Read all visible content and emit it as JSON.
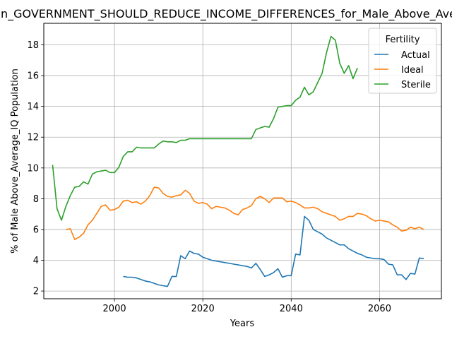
{
  "chart_data": {
    "type": "line",
    "title": "S_in_GOVERNMENT_SHOULD_REDUCE_INCOME_DIFFERENCES_for_Male_Above_Average_IQ",
    "xlabel": "Years",
    "ylabel": "% of Male Above_Average_IQ Population",
    "xlim": [
      1984,
      2074
    ],
    "ylim": [
      1.5,
      19.4
    ],
    "xticks": [
      2000,
      2020,
      2040,
      2060
    ],
    "yticks": [
      2,
      4,
      6,
      8,
      10,
      12,
      14,
      16,
      18
    ],
    "grid": true,
    "legend": {
      "title": "Fertility",
      "placement": "top-right"
    },
    "series": [
      {
        "name": "Actual",
        "color": "#1f77b4",
        "x": [
          2002,
          2003,
          2004,
          2005,
          2006,
          2007,
          2008,
          2009,
          2010,
          2011,
          2012,
          2013,
          2014,
          2015,
          2016,
          2017,
          2018,
          2019,
          2020,
          2021,
          2022,
          2023,
          2024,
          2025,
          2026,
          2027,
          2028,
          2029,
          2030,
          2031,
          2032,
          2033,
          2034,
          2035,
          2036,
          2037,
          2038,
          2039,
          2040,
          2041,
          2042,
          2043,
          2044,
          2045,
          2046,
          2047,
          2048,
          2049,
          2050,
          2051,
          2052,
          2053,
          2054,
          2055,
          2056,
          2057,
          2058,
          2059,
          2060,
          2061,
          2062,
          2063,
          2064,
          2065,
          2066,
          2067,
          2068,
          2069,
          2070
        ],
        "values": [
          2.95,
          2.9,
          2.9,
          2.85,
          2.75,
          2.65,
          2.6,
          2.5,
          2.4,
          2.35,
          2.3,
          2.95,
          2.95,
          4.3,
          4.1,
          4.6,
          4.45,
          4.4,
          4.2,
          4.1,
          4.0,
          3.95,
          3.9,
          3.85,
          3.8,
          3.75,
          3.7,
          3.65,
          3.6,
          3.5,
          3.8,
          3.4,
          2.95,
          3.05,
          3.2,
          3.45,
          2.9,
          3.0,
          3.0,
          4.4,
          4.35,
          6.85,
          6.6,
          6.0,
          5.85,
          5.7,
          5.45,
          5.3,
          5.15,
          5.0,
          5.0,
          4.75,
          4.6,
          4.45,
          4.35,
          4.2,
          4.15,
          4.1,
          4.1,
          4.05,
          3.75,
          3.7,
          3.05,
          3.05,
          2.75,
          3.15,
          3.1,
          4.15,
          4.1
        ]
      },
      {
        "name": "Ideal",
        "color": "#ff7f0e",
        "x": [
          1989,
          1990,
          1991,
          1992,
          1993,
          1994,
          1995,
          1996,
          1997,
          1998,
          1999,
          2000,
          2001,
          2002,
          2003,
          2004,
          2005,
          2006,
          2007,
          2008,
          2009,
          2010,
          2011,
          2012,
          2013,
          2014,
          2015,
          2016,
          2017,
          2018,
          2019,
          2020,
          2021,
          2022,
          2023,
          2024,
          2025,
          2026,
          2027,
          2028,
          2029,
          2030,
          2031,
          2032,
          2033,
          2034,
          2035,
          2036,
          2037,
          2038,
          2039,
          2040,
          2041,
          2042,
          2043,
          2044,
          2045,
          2046,
          2047,
          2048,
          2049,
          2050,
          2051,
          2052,
          2053,
          2054,
          2055,
          2056,
          2057,
          2058,
          2059,
          2060,
          2061,
          2062,
          2063,
          2064,
          2065,
          2066,
          2067,
          2068,
          2069,
          2070
        ],
        "values": [
          6.0,
          6.05,
          5.35,
          5.5,
          5.75,
          6.3,
          6.6,
          7.05,
          7.5,
          7.6,
          7.25,
          7.3,
          7.45,
          7.85,
          7.9,
          7.75,
          7.8,
          7.65,
          7.85,
          8.2,
          8.75,
          8.7,
          8.35,
          8.15,
          8.1,
          8.2,
          8.25,
          8.55,
          8.35,
          7.85,
          7.7,
          7.75,
          7.65,
          7.35,
          7.5,
          7.45,
          7.4,
          7.25,
          7.05,
          6.95,
          7.3,
          7.4,
          7.55,
          8.0,
          8.15,
          8.0,
          7.75,
          8.05,
          8.05,
          8.05,
          7.8,
          7.85,
          7.75,
          7.6,
          7.4,
          7.4,
          7.45,
          7.35,
          7.15,
          7.05,
          6.95,
          6.85,
          6.6,
          6.7,
          6.85,
          6.85,
          7.05,
          7.0,
          6.9,
          6.7,
          6.55,
          6.6,
          6.55,
          6.5,
          6.3,
          6.15,
          5.9,
          5.95,
          6.15,
          6.05,
          6.15,
          6.0
        ]
      },
      {
        "name": "Sterile",
        "color": "#2ca02c",
        "x": [
          1986,
          1987,
          1988,
          1989,
          1990,
          1991,
          1992,
          1993,
          1994,
          1995,
          1996,
          1997,
          1998,
          1999,
          2000,
          2001,
          2002,
          2003,
          2004,
          2005,
          2006,
          2007,
          2008,
          2009,
          2010,
          2011,
          2012,
          2013,
          2014,
          2015,
          2016,
          2017,
          2018,
          2019,
          2020,
          2021,
          2022,
          2023,
          2024,
          2025,
          2026,
          2027,
          2028,
          2029,
          2030,
          2031,
          2032,
          2033,
          2034,
          2035,
          2036,
          2037,
          2038,
          2039,
          2040,
          2041,
          2042,
          2043,
          2044,
          2045,
          2046,
          2047,
          2048,
          2049,
          2050,
          2051,
          2052,
          2053,
          2054,
          2055
        ],
        "values": [
          10.2,
          7.35,
          6.6,
          7.5,
          8.2,
          8.75,
          8.8,
          9.1,
          8.95,
          9.6,
          9.75,
          9.8,
          9.85,
          9.7,
          9.7,
          10.05,
          10.75,
          11.05,
          11.05,
          11.35,
          11.3,
          11.3,
          11.3,
          11.3,
          11.55,
          11.75,
          11.7,
          11.7,
          11.65,
          11.8,
          11.8,
          11.9,
          11.9,
          11.9,
          11.9,
          11.9,
          11.9,
          11.9,
          11.9,
          11.9,
          11.9,
          11.9,
          11.9,
          11.9,
          11.9,
          11.9,
          12.5,
          12.6,
          12.7,
          12.65,
          13.2,
          13.95,
          14.0,
          14.05,
          14.05,
          14.4,
          14.6,
          15.25,
          14.75,
          14.95,
          15.55,
          16.15,
          17.5,
          18.55,
          18.3,
          16.8,
          16.15,
          16.65,
          15.8,
          16.5
        ]
      }
    ]
  }
}
